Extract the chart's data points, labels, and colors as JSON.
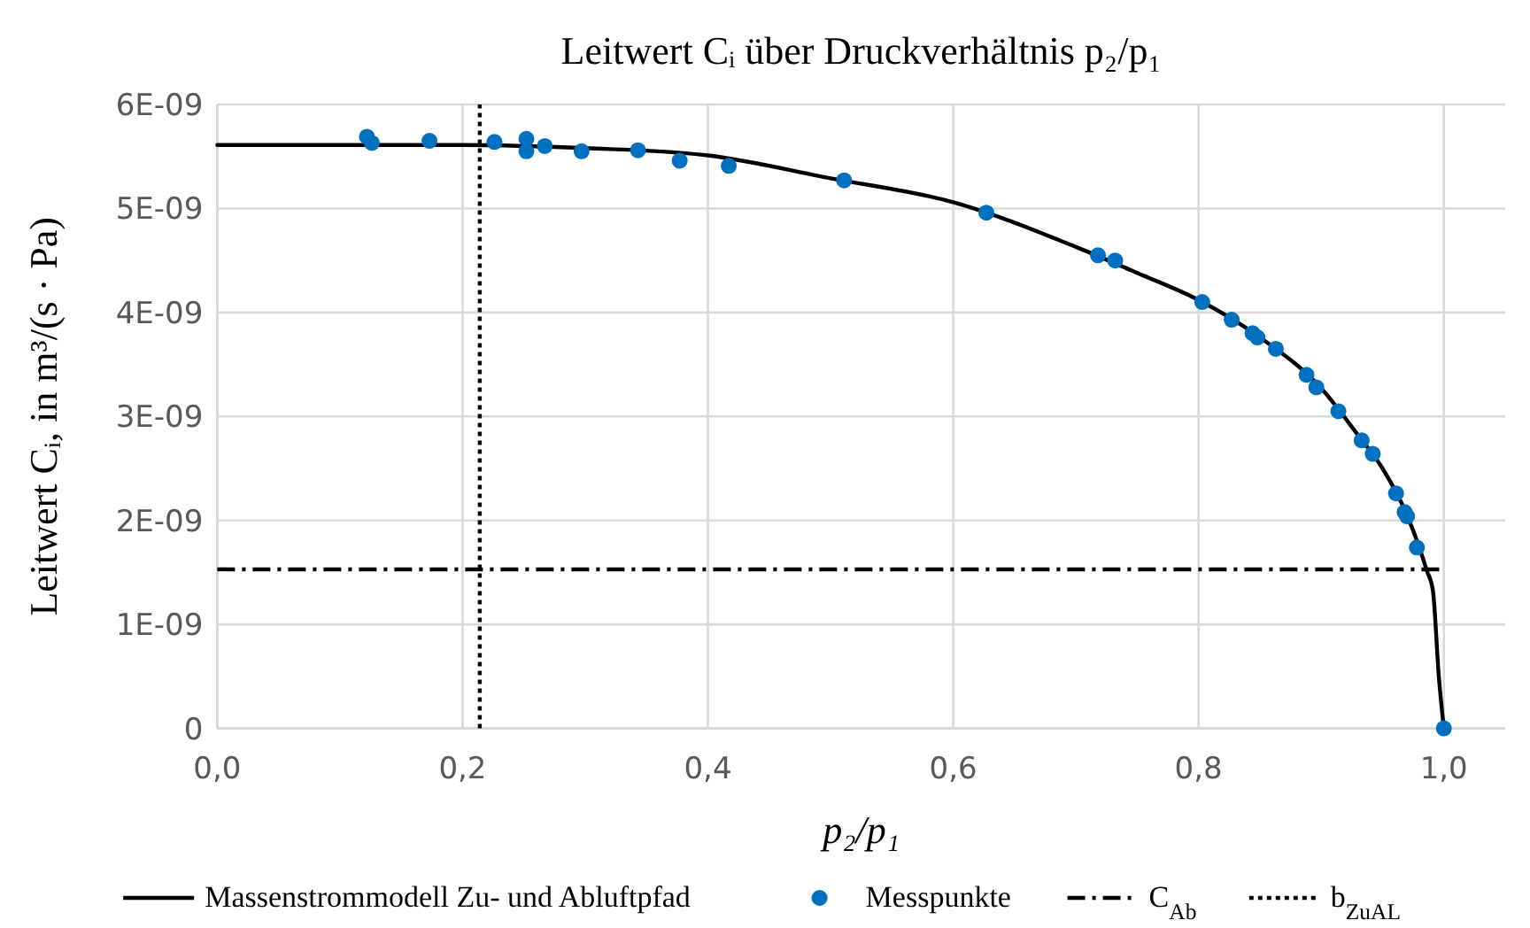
{
  "chart_data": {
    "type": "line",
    "title": "Leitwert Cᵢ über Druckverhältnis p₂/p₁",
    "xlabel": "p₂/p₁",
    "ylabel": "Leitwert Cᵢ, in m³/(s · Pa)",
    "xlim": [
      0,
      1.05
    ],
    "xticks": [
      {
        "value": 0,
        "label": "0,0"
      },
      {
        "value": 0.2,
        "label": "0,2"
      },
      {
        "value": 0.4,
        "label": "0,4"
      },
      {
        "value": 0.6,
        "label": "0,6"
      },
      {
        "value": 0.8,
        "label": "0,8"
      },
      {
        "value": 1,
        "label": "1,0"
      }
    ],
    "ylim": [
      0,
      6e-09
    ],
    "yticks": [
      0,
      {
        "value": 1e-09,
        "label": "1E-09"
      },
      {
        "value": 2e-09,
        "label": "2E-09"
      },
      {
        "value": 3e-09,
        "label": "3E-09"
      },
      {
        "value": 4e-09,
        "label": "4E-09"
      },
      {
        "value": 5e-09,
        "label": "5E-09"
      },
      {
        "value": 6e-09,
        "label": "6E-09"
      }
    ],
    "grid": true,
    "legend": "bottom",
    "series": [
      {
        "name": "Massenstrommodell Zu- und Abluftpfad",
        "color": "#000000",
        "line_style": "solid",
        "marker": "none",
        "x": [
          0,
          0.1,
          0.2,
          0.3,
          0.4,
          0.5,
          0.6,
          0.7,
          0.75,
          0.8,
          0.85,
          0.9,
          0.93,
          0.95,
          0.97,
          0.98,
          0.986,
          0.991,
          0.996,
          1
        ],
        "values": [
          5.61e-09,
          5.61e-09,
          5.61e-09,
          5.58e-09,
          5.51e-09,
          5.29e-09,
          5.06e-09,
          4.63e-09,
          4.38e-09,
          4.12e-09,
          3.76e-09,
          3.27e-09,
          2.82e-09,
          2.5e-09,
          2.05e-09,
          1.74e-09,
          1.52e-09,
          1.33e-09,
          4.8e-10,
          0
        ]
      },
      {
        "name": "Messpunkte",
        "type": "scatter",
        "color": "#0070c0",
        "marker": "circle",
        "x": [
          0.122,
          0.126,
          0.173,
          0.226,
          0.252,
          0.252,
          0.267,
          0.297,
          0.343,
          0.377,
          0.417,
          0.511,
          0.627,
          0.718,
          0.732,
          0.803,
          0.827,
          0.844,
          0.848,
          0.863,
          0.888,
          0.896,
          0.914,
          0.933,
          0.942,
          0.961,
          0.968,
          0.97,
          0.978,
          1
        ],
        "values": [
          5.69e-09,
          5.63e-09,
          5.65e-09,
          5.64e-09,
          5.67e-09,
          5.55e-09,
          5.6e-09,
          5.55e-09,
          5.56e-09,
          5.46e-09,
          5.41e-09,
          5.27e-09,
          4.96e-09,
          4.55e-09,
          4.5e-09,
          4.1e-09,
          3.93e-09,
          3.8e-09,
          3.76e-09,
          3.65e-09,
          3.4e-09,
          3.28e-09,
          3.05e-09,
          2.77e-09,
          2.64e-09,
          2.26e-09,
          2.08e-09,
          2.04e-09,
          1.74e-09,
          0
        ]
      }
    ],
    "ref_lines": [
      {
        "axis": "y",
        "value": 1.53e-09,
        "label": "C$_{Ab}$",
        "color": "#000000",
        "line_style": "dashdot"
      },
      {
        "axis": "x",
        "value": 0.214,
        "label": "b$_{ZuAL}$",
        "color": "#000000",
        "line_style": "dotted"
      }
    ]
  }
}
